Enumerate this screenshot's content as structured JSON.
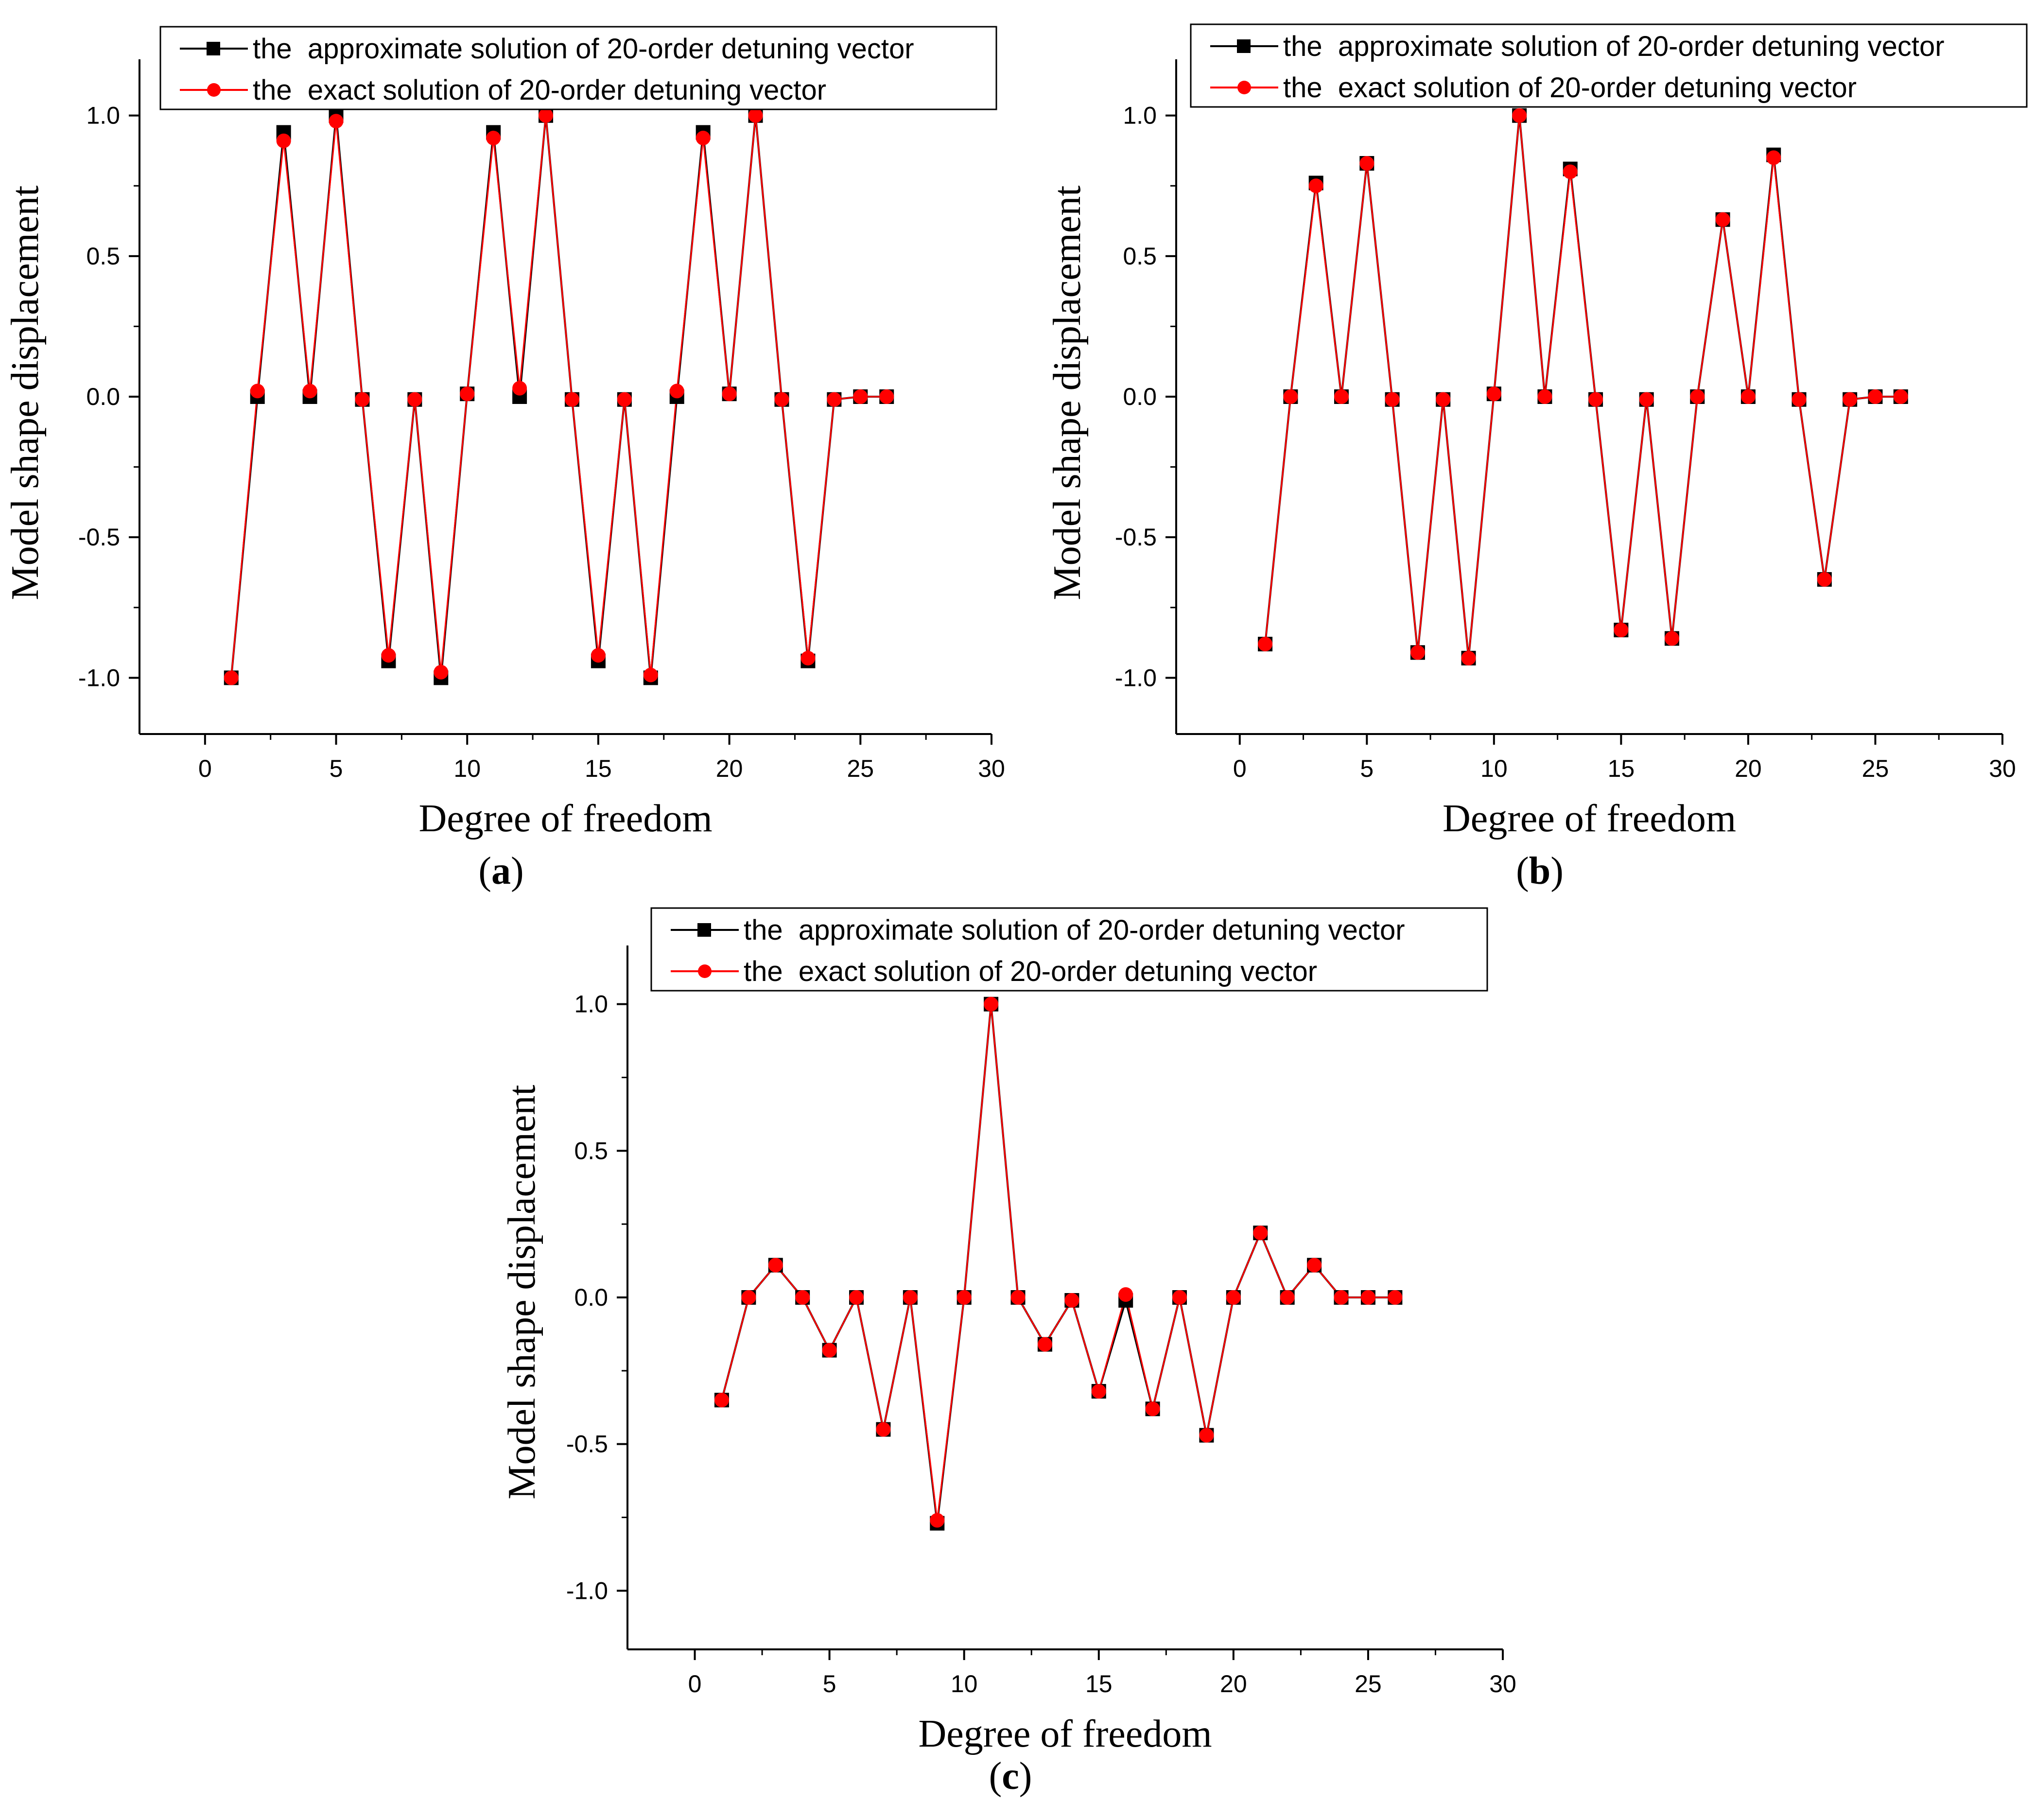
{
  "figure": {
    "panels": [
      "a",
      "b",
      "c"
    ]
  },
  "colors": {
    "approximate": "#000000",
    "exact": "#ff0000",
    "axis": "#000000",
    "background": "#ffffff"
  },
  "chart_data": [
    {
      "id": "a",
      "panel_label": "a",
      "type": "line",
      "xlabel": "Degree of freedom",
      "ylabel": "Model shape displacement",
      "xlim": [
        -2.5,
        30
      ],
      "ylim": [
        -1.2,
        1.2
      ],
      "xticks": [
        "0",
        "5",
        "10",
        "15",
        "20",
        "25",
        "30"
      ],
      "yticks": [
        "-1.0",
        "-0.5",
        "0.0",
        "0.5",
        "1.0"
      ],
      "legend_position": "top-left",
      "x": [
        1,
        2,
        3,
        4,
        5,
        6,
        7,
        8,
        9,
        10,
        11,
        12,
        13,
        14,
        15,
        16,
        17,
        18,
        19,
        20,
        21,
        22,
        23,
        24,
        25,
        26
      ],
      "series": [
        {
          "name": "the  approximate solution of 20-order detuning vector",
          "marker": "square",
          "values": [
            -1.0,
            0.0,
            0.94,
            0.0,
            1.0,
            -0.01,
            -0.94,
            -0.01,
            -1.0,
            0.01,
            0.94,
            0.0,
            1.0,
            -0.01,
            -0.94,
            -0.01,
            -1.0,
            0.0,
            0.94,
            0.01,
            1.0,
            -0.01,
            -0.94,
            -0.01,
            0.0,
            0.0
          ]
        },
        {
          "name": "the  exact solution of 20-order detuning vector",
          "marker": "circle",
          "values": [
            -1.0,
            0.02,
            0.91,
            0.02,
            0.98,
            -0.01,
            -0.92,
            -0.01,
            -0.98,
            0.01,
            0.92,
            0.03,
            1.0,
            -0.01,
            -0.92,
            -0.01,
            -0.99,
            0.02,
            0.92,
            0.01,
            1.0,
            -0.01,
            -0.93,
            -0.01,
            0.0,
            0.0
          ]
        }
      ]
    },
    {
      "id": "b",
      "panel_label": "b",
      "type": "line",
      "xlabel": "Degree of freedom",
      "ylabel": "Model shape displacement",
      "xlim": [
        -2.5,
        30
      ],
      "ylim": [
        -1.2,
        1.2
      ],
      "xticks": [
        "0",
        "5",
        "10",
        "15",
        "20",
        "25",
        "30"
      ],
      "yticks": [
        "-1.0",
        "-0.5",
        "0.0",
        "0.5",
        "1.0"
      ],
      "legend_position": "top-left",
      "x": [
        1,
        2,
        3,
        4,
        5,
        6,
        7,
        8,
        9,
        10,
        11,
        12,
        13,
        14,
        15,
        16,
        17,
        18,
        19,
        20,
        21,
        22,
        23,
        24,
        25,
        26
      ],
      "series": [
        {
          "name": "the  approximate solution of 20-order detuning vector",
          "marker": "square",
          "values": [
            -0.88,
            0.0,
            0.76,
            0.0,
            0.83,
            -0.01,
            -0.91,
            -0.01,
            -0.93,
            0.01,
            1.0,
            0.0,
            0.81,
            -0.01,
            -0.83,
            -0.01,
            -0.86,
            0.0,
            0.63,
            0.0,
            0.86,
            -0.01,
            -0.65,
            -0.01,
            0.0,
            0.0
          ]
        },
        {
          "name": "the  exact solution of 20-order detuning vector",
          "marker": "circle",
          "values": [
            -0.88,
            0.0,
            0.75,
            0.0,
            0.83,
            -0.01,
            -0.91,
            -0.01,
            -0.93,
            0.01,
            1.0,
            0.0,
            0.8,
            -0.01,
            -0.83,
            -0.01,
            -0.86,
            0.0,
            0.63,
            0.0,
            0.85,
            -0.01,
            -0.65,
            -0.01,
            0.0,
            0.0
          ]
        }
      ]
    },
    {
      "id": "c",
      "panel_label": "c",
      "type": "line",
      "xlabel": "Degree of freedom",
      "ylabel": "Model shape displacement",
      "xlim": [
        -2.5,
        30
      ],
      "ylim": [
        -1.2,
        1.2
      ],
      "xticks": [
        "0",
        "5",
        "10",
        "15",
        "20",
        "25",
        "30"
      ],
      "yticks": [
        "-1.0",
        "-0.5",
        "0.0",
        "0.5",
        "1.0"
      ],
      "legend_position": "top-left",
      "x": [
        1,
        2,
        3,
        4,
        5,
        6,
        7,
        8,
        9,
        10,
        11,
        12,
        13,
        14,
        15,
        16,
        17,
        18,
        19,
        20,
        21,
        22,
        23,
        24,
        25,
        26
      ],
      "series": [
        {
          "name": "the  approximate solution of 20-order detuning vector",
          "marker": "square",
          "values": [
            -0.35,
            0.0,
            0.11,
            0.0,
            -0.18,
            0.0,
            -0.45,
            0.0,
            -0.77,
            0.0,
            1.0,
            0.0,
            -0.16,
            -0.01,
            -0.32,
            -0.01,
            -0.38,
            0.0,
            -0.47,
            0.0,
            0.22,
            0.0,
            0.11,
            0.0,
            0.0,
            0.0
          ]
        },
        {
          "name": "the  exact solution of 20-order detuning vector",
          "marker": "circle",
          "values": [
            -0.35,
            0.0,
            0.11,
            0.0,
            -0.18,
            0.0,
            -0.45,
            0.0,
            -0.76,
            0.0,
            1.0,
            0.0,
            -0.16,
            -0.01,
            -0.32,
            0.01,
            -0.38,
            0.0,
            -0.47,
            0.0,
            0.22,
            0.0,
            0.11,
            0.0,
            0.0,
            0.0
          ]
        }
      ]
    }
  ]
}
